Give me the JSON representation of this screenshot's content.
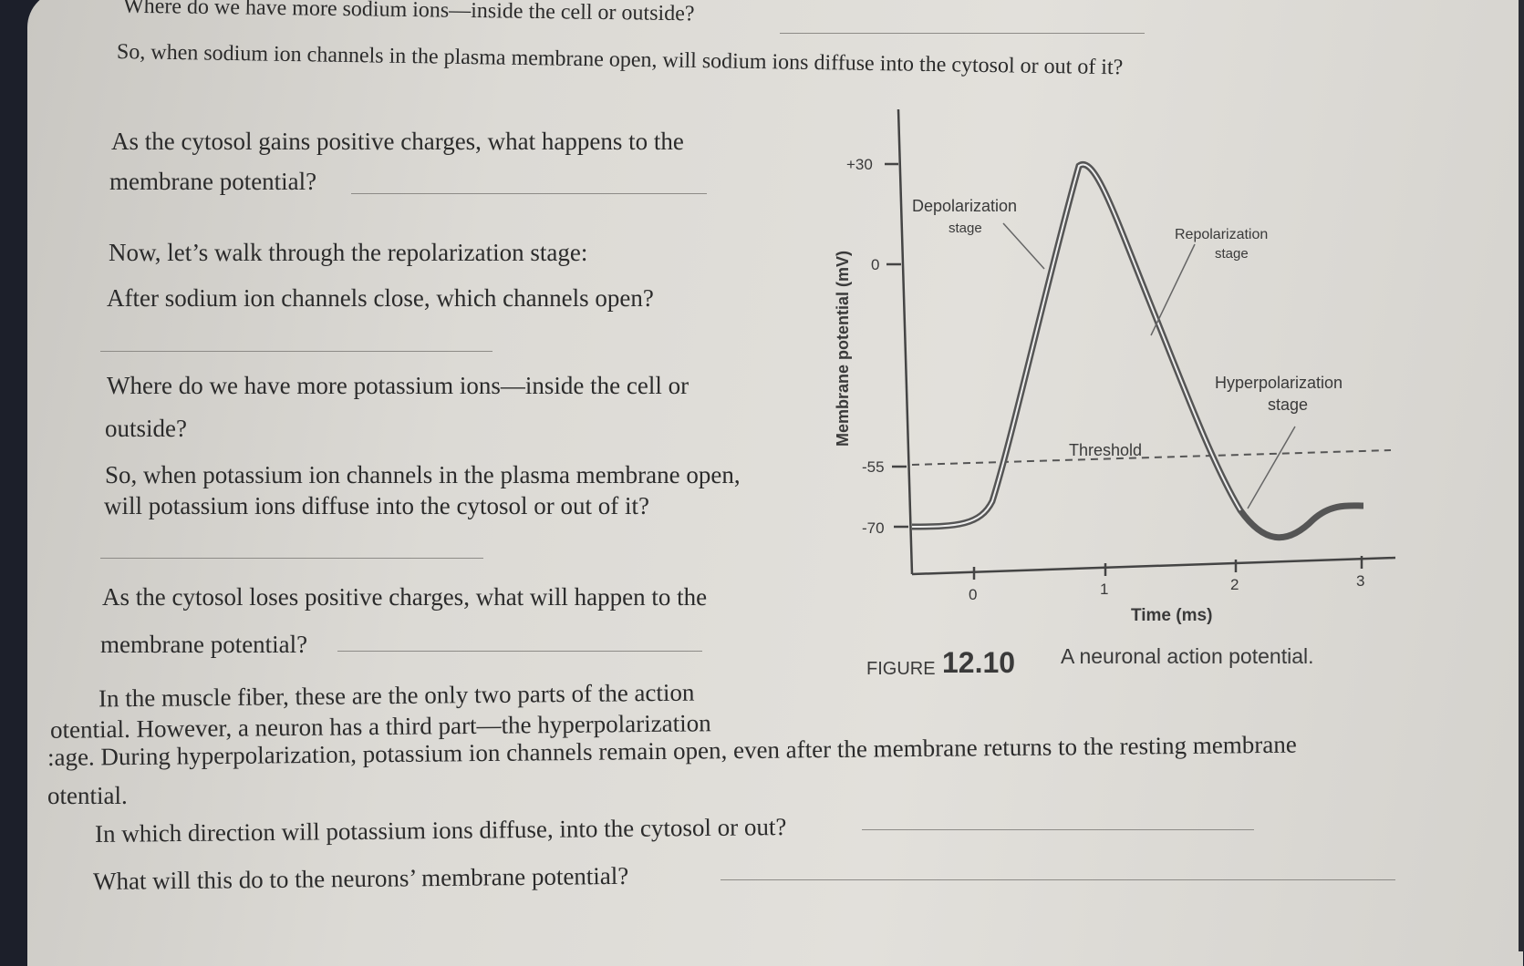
{
  "questions": {
    "q_sodium_more": "Where do we have more sodium ions—inside the cell or outside?",
    "q_sodium_diffuse": "So, when sodium ion channels in the plasma membrane open, will sodium ions diffuse into the cytosol or out of it?",
    "q_gain_1": "As the cytosol gains positive charges, what happens to the",
    "q_gain_2": "membrane potential?",
    "repol_intro": "Now, let’s walk through the repolarization stage:",
    "q_channels": "After sodium ion channels close, which channels open?",
    "q_potassium_more_1": "Where do we have more potassium ions—inside the cell or",
    "q_potassium_more_2": "outside?",
    "q_potassium_diffuse_1": "So, when potassium ion channels in the plasma membrane open,",
    "q_potassium_diffuse_2": "will potassium ions diffuse into the cytosol or out of it?",
    "q_lose_1": "As the cytosol loses positive charges, what will happen to the",
    "q_lose_2": "membrane potential?",
    "para_1": "In the muscle fiber, these are the only two parts of the action",
    "para_2": "otential. However, a neuron has a third part—the hyperpolarization",
    "para_3": ":age. During hyperpolarization, potassium ion channels remain open, even after the membrane returns to the resting membrane",
    "para_4": "otential.",
    "q_direction": "In which direction will potassium ions diffuse, into the cytosol or out?",
    "q_effect": "What will this do to the neurons’ membrane potential?"
  },
  "figure": {
    "ylabel": "Membrane potential (mV)",
    "xlabel": "Time (ms)",
    "y_ticks": [
      "+30",
      "0",
      "-55",
      "-70"
    ],
    "x_ticks": [
      "0",
      "1",
      "2",
      "3"
    ],
    "labels": {
      "depol_1": "Depolarization",
      "depol_2": "stage",
      "repol_1": "Repolarization",
      "repol_2": "stage",
      "hyper_1": "Hyperpolarization",
      "hyper_2": "stage",
      "threshold": "Threshold"
    },
    "caption_prefix": "FIGURE",
    "caption_number": "12.10",
    "caption_text": "A neuronal action potential."
  }
}
